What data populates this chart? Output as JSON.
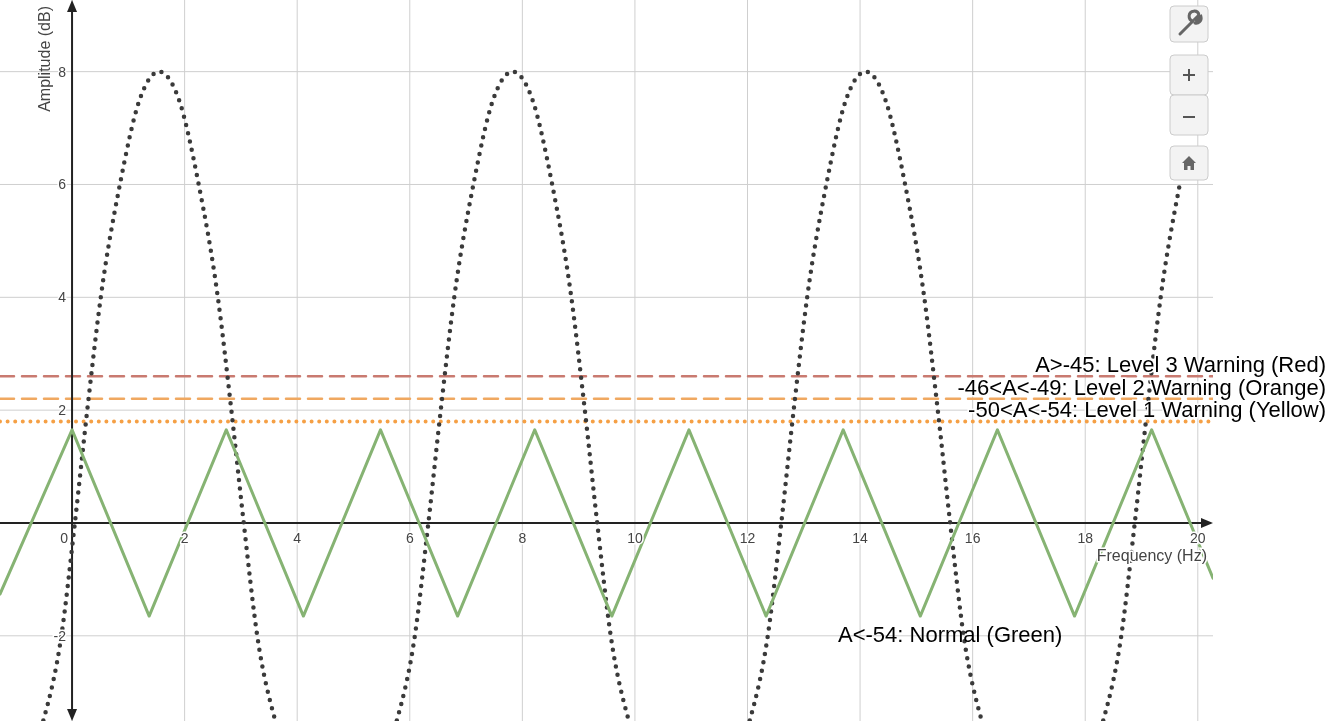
{
  "chart_data": {
    "type": "line",
    "xlabel": "Frequency (Hz)",
    "ylabel": "Amplitude (dB)",
    "xlim": [
      -1.28,
      20.27
    ],
    "ylim": [
      -3.51,
      9.27
    ],
    "xticks": [
      0,
      2,
      4,
      6,
      8,
      10,
      12,
      14,
      16,
      18,
      20
    ],
    "yticks": [
      -2,
      2,
      4,
      6,
      8
    ],
    "grid": true,
    "series": [
      {
        "color": "#3a3a3a",
        "line_style": "dotted",
        "x": [
          -0.51,
          -0.19,
          0.05,
          0.27,
          0.51,
          0.85,
          1.2,
          1.55,
          1.9,
          2.25,
          2.59,
          2.83,
          3.05,
          3.29,
          3.61,
          4.5,
          5.77,
          6.09,
          6.33,
          6.55,
          6.79,
          7.13,
          7.48,
          7.83,
          8.18,
          8.53,
          8.87,
          9.11,
          9.33,
          9.57,
          9.89,
          11,
          12.04,
          12.36,
          12.6,
          12.82,
          13.06,
          13.4,
          13.75,
          14.1,
          14.45,
          14.8,
          15.14,
          15.38,
          15.6,
          15.84,
          16.16,
          17.2,
          18.32,
          18.64,
          18.88,
          19.1,
          19.34,
          19.68
        ],
        "values": [
          -3.5,
          -2,
          0,
          2,
          4,
          6,
          7.5,
          8,
          7.5,
          6,
          4,
          2,
          0,
          -2,
          -3.5,
          null,
          -3.5,
          -2,
          0,
          2,
          4,
          6,
          7.5,
          8,
          7.5,
          6,
          4,
          2,
          0,
          -2,
          -3.5,
          null,
          -3.5,
          -2,
          0,
          2,
          4,
          6,
          7.5,
          8,
          7.5,
          6,
          4,
          2,
          0,
          -2,
          -3.5,
          null,
          -3.5,
          -2,
          0,
          2,
          4,
          6
        ]
      },
      {
        "color": "#86b373",
        "line_style": "solid",
        "x": [
          -1.28,
          0,
          1.37,
          2.74,
          4.11,
          5.48,
          6.85,
          8.22,
          9.59,
          10.96,
          12.33,
          13.7,
          15.07,
          16.44,
          17.81,
          19.18,
          20.27
        ],
        "values": [
          -1.26,
          1.65,
          -1.65,
          1.65,
          -1.65,
          1.65,
          -1.65,
          1.65,
          -1.65,
          1.65,
          -1.65,
          1.65,
          -1.65,
          1.65,
          -1.65,
          1.65,
          -0.98
        ]
      }
    ],
    "ref_lines": [
      {
        "axis": "y",
        "value": 2.6,
        "label": "A>-45: Level 3 Warning (Red)",
        "color": "#c97a70",
        "line_style": "dashed"
      },
      {
        "axis": "y",
        "value": 2.2,
        "label": "-46<A<-49: Level 2 Warning (Orange)",
        "color": "#f0a860",
        "line_style": "dashed"
      },
      {
        "axis": "y",
        "value": 1.8,
        "label": "-50<A<-54: Level 1 Warning (Yellow)",
        "color": "#f5a045",
        "line_style": "dotted"
      }
    ],
    "annotations": [
      "A<-54: Normal (Green)"
    ]
  }
}
